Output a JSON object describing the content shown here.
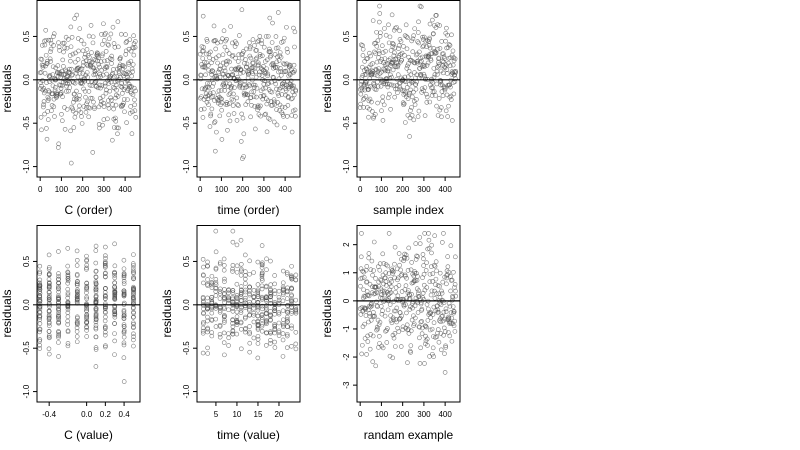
{
  "chart_data": [
    {
      "type": "scatter",
      "xlabel": "C (order)",
      "ylabel": "residuals",
      "xlim": [
        -15,
        470
      ],
      "ylim": [
        -1.12,
        0.92
      ],
      "xticks": [
        0,
        100,
        200,
        300,
        400
      ],
      "xtick_labels": [
        "0",
        "100",
        "200",
        "300",
        "400"
      ],
      "yticks": [
        -1.0,
        -0.5,
        0.0,
        0.5
      ],
      "ytick_labels": [
        "-1.0",
        "-0.5",
        "0.0",
        "0.5"
      ],
      "reference_line_y": 0,
      "point_count": 450,
      "x_range": [
        0,
        450
      ],
      "y_range": [
        -1.05,
        0.85
      ],
      "pattern": "order"
    },
    {
      "type": "scatter",
      "xlabel": "time (order)",
      "ylabel": "residuals",
      "xlim": [
        -15,
        470
      ],
      "ylim": [
        -1.12,
        0.92
      ],
      "xticks": [
        0,
        100,
        200,
        300,
        400
      ],
      "xtick_labels": [
        "0",
        "100",
        "200",
        "300",
        "400"
      ],
      "yticks": [
        -1.0,
        -0.5,
        0.0,
        0.5
      ],
      "ytick_labels": [
        "-1.0",
        "-0.5",
        "0.0",
        "0.5"
      ],
      "reference_line_y": 0,
      "point_count": 450,
      "x_range": [
        0,
        450
      ],
      "y_range": [
        -1.05,
        0.85
      ],
      "pattern": "order"
    },
    {
      "type": "scatter",
      "xlabel": "sample index",
      "ylabel": "residuals",
      "xlim": [
        -15,
        470
      ],
      "ylim": [
        -1.12,
        0.92
      ],
      "xticks": [
        0,
        100,
        200,
        300,
        400
      ],
      "xtick_labels": [
        "0",
        "100",
        "200",
        "300",
        "400"
      ],
      "yticks": [
        -1.0,
        -0.5,
        0.0,
        0.5
      ],
      "ytick_labels": [
        "-1.0",
        "-0.5",
        "0.0",
        "0.5"
      ],
      "reference_line_y": 0,
      "point_count": 450,
      "x_range": [
        0,
        450
      ],
      "y_range": [
        -1.05,
        0.85
      ],
      "pattern": "hump"
    },
    {
      "type": "scatter",
      "xlabel": "C (value)",
      "ylabel": "residuals",
      "xlim": [
        -0.53,
        0.57
      ],
      "ylim": [
        -1.12,
        0.92
      ],
      "xticks": [
        -0.4,
        0.0,
        0.2,
        0.4
      ],
      "xtick_labels": [
        "-0.4",
        "0.0",
        "0.2",
        "0.4"
      ],
      "yticks": [
        -1.0,
        -0.5,
        0.0,
        0.5
      ],
      "ytick_labels": [
        "-1.0",
        "-0.5",
        "0.0",
        "0.5"
      ],
      "reference_line_y": 0,
      "point_count": 450,
      "x_levels": [
        -0.5,
        -0.4,
        -0.3,
        -0.2,
        -0.1,
        0.0,
        0.1,
        0.2,
        0.3,
        0.4,
        0.5
      ],
      "y_range": [
        -1.05,
        0.85
      ],
      "pattern": "levels"
    },
    {
      "type": "scatter",
      "xlabel": "time (value)",
      "ylabel": "residuals",
      "xlim": [
        0.5,
        25
      ],
      "ylim": [
        -1.12,
        0.92
      ],
      "xticks": [
        5,
        10,
        15,
        20
      ],
      "xtick_labels": [
        "5",
        "10",
        "15",
        "20"
      ],
      "yticks": [
        -1.0,
        -0.5,
        0.0,
        0.5
      ],
      "ytick_labels": [
        "-1.0",
        "-0.5",
        "0.0",
        "0.5"
      ],
      "reference_line_y": 0,
      "point_count": 450,
      "x_levels": [
        2,
        3,
        4,
        5,
        6,
        7,
        8,
        9,
        10,
        11,
        12,
        13,
        14,
        15,
        16,
        17,
        18,
        19,
        20,
        21,
        22,
        23,
        24
      ],
      "y_range": [
        -1.05,
        0.85
      ],
      "pattern": "levels"
    },
    {
      "type": "scatter",
      "xlabel": "randam example",
      "ylabel": "residuals",
      "xlim": [
        -15,
        470
      ],
      "ylim": [
        -3.6,
        2.7
      ],
      "xticks": [
        0,
        100,
        200,
        300,
        400
      ],
      "xtick_labels": [
        "0",
        "100",
        "200",
        "300",
        "400"
      ],
      "yticks": [
        -3,
        -2,
        -1,
        0,
        1,
        2
      ],
      "ytick_labels": [
        "-3",
        "-2",
        "-1",
        "0",
        "1",
        "2"
      ],
      "reference_line_y": 0,
      "point_count": 450,
      "x_range": [
        0,
        450
      ],
      "y_range": [
        -3.4,
        2.4
      ],
      "pattern": "normal"
    }
  ]
}
